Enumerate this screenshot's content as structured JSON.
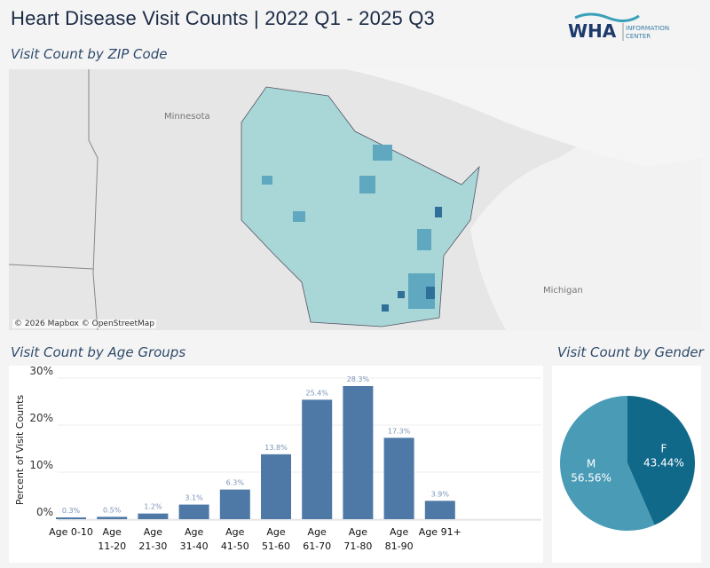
{
  "header": {
    "title": "Heart Disease Visit Counts | 2022 Q1 - 2025 Q3",
    "logo_text": "WHA INFORMATION CENTER"
  },
  "map": {
    "title": "Visit Count by ZIP Code",
    "attribution": "© 2026 Mapbox © OpenStreetMap",
    "labels": {
      "minnesota": "Minnesota",
      "michigan": "Michigan"
    },
    "colors": {
      "low": "#a9d6d6",
      "high": "#2f6f9a"
    }
  },
  "age_section": {
    "title": "Visit Count by Age Groups"
  },
  "gender_section": {
    "title": "Visit Count by Gender"
  },
  "chart_data": [
    {
      "type": "bar",
      "ylabel": "Percent of Visit Counts",
      "ylim": [
        0,
        30
      ],
      "yticks": [
        "0%",
        "10%",
        "20%",
        "30%"
      ],
      "grid": true,
      "color": "#4e79a7",
      "categories": [
        "Age 0-10",
        "Age 11-20",
        "Age 21-30",
        "Age 31-40",
        "Age 41-50",
        "Age 51-60",
        "Age 61-70",
        "Age 71-80",
        "Age 81-90",
        "Age 91+"
      ],
      "values": [
        0.3,
        0.5,
        1.2,
        3.1,
        6.3,
        13.8,
        25.4,
        28.3,
        17.3,
        3.9
      ],
      "data_labels": [
        "0.3%",
        "0.5%",
        "1.2%",
        "3.1%",
        "6.3%",
        "13.8%",
        "25.4%",
        "28.3%",
        "17.3%",
        "3.9%"
      ]
    },
    {
      "type": "pie",
      "slices": [
        {
          "label": "F",
          "value": 43.44,
          "text": "43.44%",
          "color": "#11698a"
        },
        {
          "label": "M",
          "value": 56.56,
          "text": "56.56%",
          "color": "#4a9cb6"
        }
      ]
    }
  ]
}
